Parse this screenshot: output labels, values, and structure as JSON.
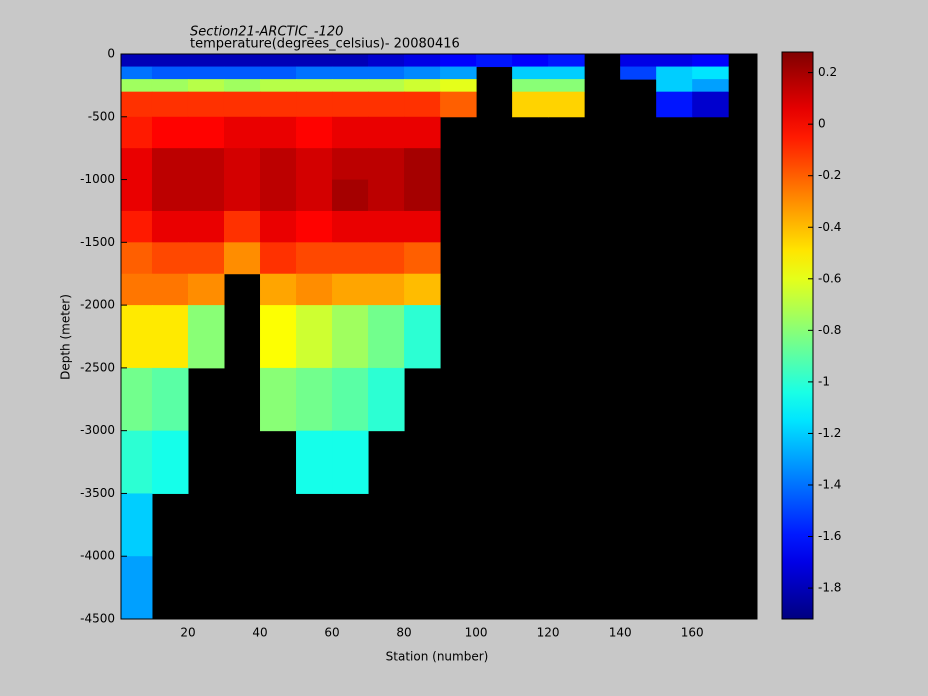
{
  "chart_data": {
    "type": "heatmap",
    "title": "Section21-ARCTIC_-120",
    "subtitle": "temperature(degrees_celsius)- 20080416",
    "xlabel": "Station (number)",
    "ylabel": "Depth (meter)",
    "xlim": [
      1.4,
      178
    ],
    "ylim": [
      -4500,
      0
    ],
    "xticks": [
      20,
      40,
      60,
      80,
      100,
      120,
      140,
      160
    ],
    "yticks": [
      0,
      -500,
      -1000,
      -1500,
      -2000,
      -2500,
      -3000,
      -3500,
      -4000,
      -4500
    ],
    "clim": [
      -1.92,
      0.28
    ],
    "cticks": [
      0.2,
      0,
      -0.2,
      -0.4,
      -0.6,
      -0.8,
      -1,
      -1.2,
      -1.4,
      -1.6,
      -1.8
    ],
    "colormap": "jet",
    "background": "#000000",
    "x_edges": [
      0,
      10,
      20,
      30,
      40,
      50,
      60,
      70,
      80,
      90,
      100,
      110,
      120,
      130,
      140,
      150,
      160,
      170,
      180
    ],
    "y_edges": [
      0,
      -100,
      -200,
      -300,
      -500,
      -750,
      -1000,
      -1250,
      -1500,
      -1750,
      -2000,
      -2500,
      -3000,
      -3500,
      -4000,
      -4500
    ],
    "z": [
      [
        -1.8,
        -1.8,
        -1.8,
        -1.8,
        -1.8,
        -1.8,
        -1.8,
        -1.75,
        -1.7,
        -1.65,
        -1.6,
        -1.65,
        -1.6,
        null,
        -1.7,
        -1.7,
        -1.65,
        null
      ],
      [
        -1.4,
        -1.45,
        -1.45,
        -1.45,
        -1.45,
        -1.4,
        -1.4,
        -1.4,
        -1.35,
        -1.3,
        null,
        -1.2,
        -1.2,
        null,
        -1.5,
        -1.2,
        -1.15,
        null
      ],
      [
        -0.75,
        -0.75,
        -0.7,
        -0.75,
        -0.7,
        -0.7,
        -0.7,
        -0.7,
        -0.65,
        -0.6,
        null,
        -0.8,
        -0.8,
        null,
        null,
        -1.2,
        -1.3,
        null
      ],
      [
        -0.1,
        -0.1,
        -0.1,
        -0.1,
        -0.1,
        -0.1,
        -0.1,
        -0.1,
        -0.1,
        -0.2,
        null,
        -0.45,
        -0.45,
        null,
        null,
        -1.6,
        -1.75,
        null
      ],
      [
        -0.05,
        0,
        0,
        0.05,
        0.05,
        0,
        0.05,
        0.05,
        0.05,
        null,
        null,
        null,
        null,
        null,
        null,
        null,
        null,
        null
      ],
      [
        0.05,
        0.15,
        0.15,
        0.1,
        0.15,
        0.1,
        0.15,
        0.15,
        0.2,
        null,
        null,
        null,
        null,
        null,
        null,
        null,
        null,
        null
      ],
      [
        0.05,
        0.15,
        0.15,
        0.1,
        0.15,
        0.1,
        0.2,
        0.15,
        0.2,
        null,
        null,
        null,
        null,
        null,
        null,
        null,
        null,
        null
      ],
      [
        -0.05,
        0.05,
        0.05,
        -0.1,
        0.05,
        0,
        0.05,
        0.05,
        0.05,
        null,
        null,
        null,
        null,
        null,
        null,
        null,
        null,
        null
      ],
      [
        -0.2,
        -0.15,
        -0.15,
        -0.3,
        -0.1,
        -0.15,
        -0.15,
        -0.15,
        -0.2,
        null,
        null,
        null,
        null,
        null,
        null,
        null,
        null,
        null
      ],
      [
        -0.25,
        -0.25,
        -0.3,
        null,
        -0.35,
        -0.3,
        -0.35,
        -0.35,
        -0.4,
        null,
        null,
        null,
        null,
        null,
        null,
        null,
        null,
        null
      ],
      [
        -0.5,
        -0.5,
        -0.8,
        null,
        -0.55,
        -0.65,
        -0.75,
        -0.85,
        -1.0,
        null,
        null,
        null,
        null,
        null,
        null,
        null,
        null,
        null
      ],
      [
        -0.85,
        -0.9,
        null,
        null,
        -0.8,
        -0.85,
        -0.9,
        -1.0,
        null,
        null,
        null,
        null,
        null,
        null,
        null,
        null,
        null,
        null
      ],
      [
        -1.0,
        -1.05,
        null,
        null,
        null,
        -1.05,
        -1.05,
        null,
        null,
        null,
        null,
        null,
        null,
        null,
        null,
        null,
        null,
        null
      ],
      [
        -1.2,
        null,
        null,
        null,
        null,
        null,
        null,
        null,
        null,
        null,
        null,
        null,
        null,
        null,
        null,
        null,
        null,
        null
      ],
      [
        -1.3,
        null,
        null,
        null,
        null,
        null,
        null,
        null,
        null,
        null,
        null,
        null,
        null,
        null,
        null,
        null,
        null,
        null
      ]
    ]
  }
}
